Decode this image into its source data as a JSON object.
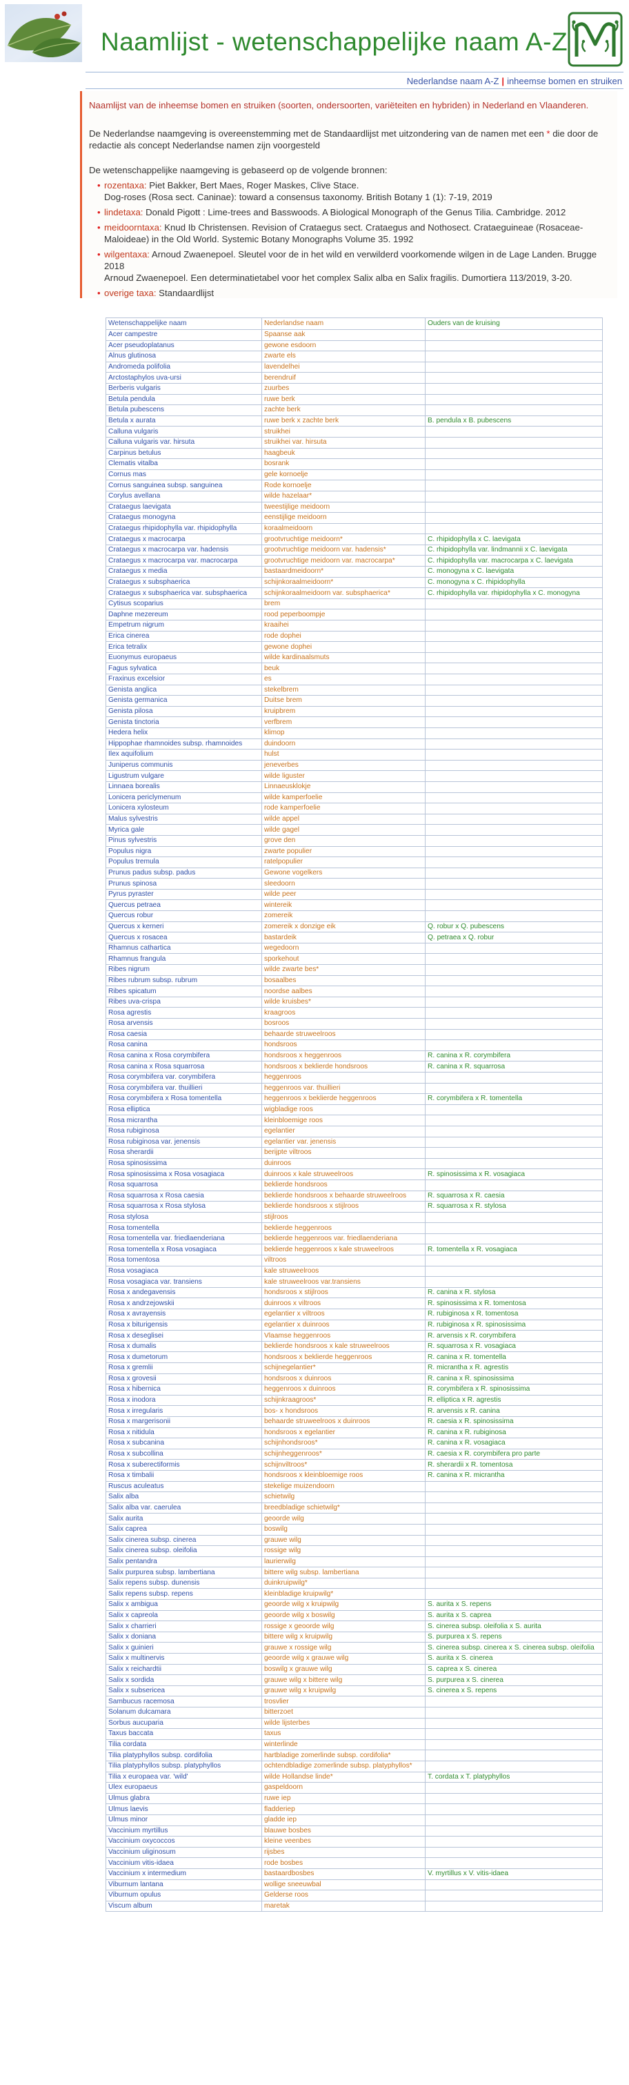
{
  "header": {
    "title": "Naamlijst - wetenschappelijke  naam A-Z",
    "nav_current": "Nederlandse naam A-Z",
    "nav_separator": "|",
    "nav_link": "inheemse bomen en struiken"
  },
  "intro": {
    "heading": "Naamlijst van de inheemse bomen en struiken (soorten, ondersoorten, variëteiten en hybriden) in Nederland en Vlaanderen.",
    "p2_a": "De Nederlandse naamgeving is overeenstemming met de Standaardlijst met uitzondering van de namen met een ",
    "p2_star": "*",
    "p2_b": " die door de redactie als concept Nederlandse namen zijn voorgesteld",
    "p3": "De wetenschappelijke naamgeving is gebaseerd op de volgende bronnen:",
    "sources": [
      {
        "key": "rozentaxa:",
        "line1": " Piet Bakker, Bert Maes, Roger Maskes, Clive Stace.",
        "line2": "Dog-roses (Rosa sect. Caninae): toward a consensus taxonomy. British Botany 1 (1): 7-19, 2019"
      },
      {
        "key": "lindetaxa:",
        "line1": " Donald Pigott : Lime-trees and Basswoods. A Biological Monograph of the Genus Tilia. Cambridge. 2012",
        "line2": ""
      },
      {
        "key": "meidoorntaxa:",
        "line1": " Knud Ib Christensen. Revision of Crataegus sect. Crataegus and Nothosect. Crataeguineae (Rosaceae-Maloideae) in the Old World. Systemic Botany Monographs Volume 35. 1992",
        "line2": ""
      },
      {
        "key": "wilgentaxa:",
        "line1": " Arnoud Zwaenepoel. Sleutel voor de in het wild en verwilderd voorkomende wilgen in de Lage Landen. Brugge 2018",
        "line2": "Arnoud Zwaenepoel. Een determinatietabel voor het complex Salix alba en Salix fragilis. Dumortiera 113/2019, 3-20."
      },
      {
        "key": "overige taxa:",
        "line1": " Standaardlijst",
        "line2": ""
      }
    ]
  },
  "table": {
    "headers": [
      "Wetenschappelijke naam",
      "Nederlandse naam",
      "Ouders van de kruising"
    ],
    "rows": [
      [
        "Acer campestre",
        "Spaanse aak",
        ""
      ],
      [
        "Acer pseudoplatanus",
        "gewone esdoorn",
        ""
      ],
      [
        "Alnus glutinosa",
        "zwarte els",
        ""
      ],
      [
        "Andromeda polifolia",
        "lavendelhei",
        ""
      ],
      [
        "Arctostaphylos uva-ursi",
        "berendruif",
        ""
      ],
      [
        "Berberis vulgaris",
        "zuurbes",
        ""
      ],
      [
        "Betula pendula",
        "ruwe berk",
        ""
      ],
      [
        "Betula pubescens",
        "zachte berk",
        ""
      ],
      [
        "Betula x aurata",
        "ruwe berk x zachte berk",
        "B. pendula x B. pubescens"
      ],
      [
        "Calluna vulgaris",
        "struikhei",
        ""
      ],
      [
        "Calluna vulgaris var. hirsuta",
        "struikhei var. hirsuta",
        ""
      ],
      [
        "Carpinus betulus",
        "haagbeuk",
        ""
      ],
      [
        "Clematis vitalba",
        "bosrank",
        ""
      ],
      [
        "Cornus mas",
        "gele kornoelje",
        ""
      ],
      [
        "Cornus sanguinea subsp. sanguinea",
        "Rode kornoelje",
        ""
      ],
      [
        "Corylus avellana",
        "wilde hazelaar*",
        ""
      ],
      [
        "Crataegus laevigata",
        "tweestijlige meidoorn",
        ""
      ],
      [
        "Crataegus monogyna",
        "eenstijlige meidoorn",
        ""
      ],
      [
        "Crataegus rhipidophylla var. rhipidophylla",
        "koraalmeidoorn",
        ""
      ],
      [
        "Crataegus x macrocarpa",
        "grootvruchtige meidoorn*",
        "C. rhipidophylla x C. laevigata"
      ],
      [
        "Crataegus x macrocarpa var. hadensis",
        "grootvruchtige meidoorn var. hadensis*",
        "C. rhipidophylla var. lindmannii x C. laevigata"
      ],
      [
        "Crataegus x macrocarpa var. macrocarpa",
        "grootvruchtige meidoorn var. macrocarpa*",
        "C. rhipidophylla var. macrocarpa x C. laevigata"
      ],
      [
        "Crataegus x media",
        "bastaardmeidoorn*",
        "C. monogyna x C. laevigata"
      ],
      [
        "Crataegus x subsphaerica",
        "schijnkoraalmeidoorn*",
        "C. monogyna x C. rhipidophylla"
      ],
      [
        "Crataegus x subsphaerica var. subsphaerica",
        "schijnkoraalmeidoorn var. subsphaerica*",
        "C. rhipidophylla var. rhipidophylla x C. monogyna"
      ],
      [
        "Cytisus scoparius",
        "brem",
        ""
      ],
      [
        "Daphne mezereum",
        "rood peperboompje",
        ""
      ],
      [
        "Empetrum nigrum",
        "kraaihei",
        ""
      ],
      [
        "Erica cinerea",
        "rode dophei",
        ""
      ],
      [
        "Erica tetralix",
        "gewone dophei",
        ""
      ],
      [
        "Euonymus europaeus",
        "wilde kardinaalsmuts",
        ""
      ],
      [
        "Fagus sylvatica",
        "beuk",
        ""
      ],
      [
        "Fraxinus excelsior",
        "es",
        ""
      ],
      [
        "Genista anglica",
        "stekelbrem",
        ""
      ],
      [
        "Genista germanica",
        "Duitse brem",
        ""
      ],
      [
        "Genista pilosa",
        "kruipbrem",
        ""
      ],
      [
        "Genista tinctoria",
        "verfbrem",
        ""
      ],
      [
        "Hedera helix",
        "klimop",
        ""
      ],
      [
        "Hippophae rhamnoides subsp. rhamnoides",
        "duindoorn",
        ""
      ],
      [
        "Ilex aquifolium",
        "hulst",
        ""
      ],
      [
        "Juniperus communis",
        "jeneverbes",
        ""
      ],
      [
        "Ligustrum vulgare",
        "wilde liguster",
        ""
      ],
      [
        "Linnaea borealis",
        "Linnaeusklokje",
        ""
      ],
      [
        "Lonicera periclymenum",
        "wilde kamperfoelie",
        ""
      ],
      [
        "Lonicera xylosteum",
        "rode kamperfoelie",
        ""
      ],
      [
        "Malus sylvestris",
        "wilde appel",
        ""
      ],
      [
        "Myrica gale",
        "wilde gagel",
        ""
      ],
      [
        "Pinus sylvestris",
        "grove den",
        ""
      ],
      [
        "Populus nigra",
        "zwarte populier",
        ""
      ],
      [
        "Populus tremula",
        "ratelpopulier",
        ""
      ],
      [
        "Prunus padus subsp. padus",
        "Gewone vogelkers",
        ""
      ],
      [
        "Prunus spinosa",
        "sleedoorn",
        ""
      ],
      [
        "Pyrus pyraster",
        "wilde peer",
        ""
      ],
      [
        "Quercus petraea",
        "wintereik",
        ""
      ],
      [
        "Quercus robur",
        "zomereik",
        ""
      ],
      [
        "Quercus x kerneri",
        "zomereik x donzige eik",
        "Q. robur x Q. pubescens"
      ],
      [
        "Quercus x rosacea",
        "bastardeik",
        "Q. petraea x Q. robur"
      ],
      [
        "Rhamnus cathartica",
        "wegedoorn",
        ""
      ],
      [
        "Rhamnus frangula",
        "sporkehout",
        ""
      ],
      [
        "Ribes nigrum",
        "wilde zwarte bes*",
        ""
      ],
      [
        "Ribes rubrum subsp. rubrum",
        "bosaalbes",
        ""
      ],
      [
        "Ribes spicatum",
        "noordse aalbes",
        ""
      ],
      [
        "Ribes uva-crispa",
        "wilde kruisbes*",
        ""
      ],
      [
        "Rosa agrestis",
        "kraagroos",
        ""
      ],
      [
        "Rosa arvensis",
        "bosroos",
        ""
      ],
      [
        "Rosa caesia",
        "behaarde struweelroos",
        ""
      ],
      [
        "Rosa canina",
        "hondsroos",
        ""
      ],
      [
        "Rosa canina x Rosa corymbifera",
        "hondsroos x heggenroos",
        "R. canina x R. corymbifera"
      ],
      [
        "Rosa canina x Rosa squarrosa",
        "hondsroos x beklierde hondsroos",
        "R. canina x R. squarrosa"
      ],
      [
        "Rosa corymbifera var. corymbifera",
        "heggenroos",
        ""
      ],
      [
        "Rosa corymbifera var. thuillieri",
        "heggenroos var. thuillieri",
        ""
      ],
      [
        "Rosa corymbifera x Rosa tomentella",
        "heggenroos x beklierde heggenroos",
        "R. corymbifera x R. tomentella"
      ],
      [
        "Rosa elliptica",
        "wigbladige roos",
        ""
      ],
      [
        "Rosa micrantha",
        "kleinbloemige roos",
        ""
      ],
      [
        "Rosa rubiginosa",
        "egelantier",
        ""
      ],
      [
        "Rosa rubiginosa var. jenensis",
        "egelantier var. jenensis",
        ""
      ],
      [
        "Rosa sherardii",
        "berijpte viltroos",
        ""
      ],
      [
        "Rosa spinosissima",
        "duinroos",
        ""
      ],
      [
        "Rosa spinosissima x Rosa vosagiaca",
        "duinroos x kale struweelroos",
        "R. spinosissima x R. vosagiaca"
      ],
      [
        "Rosa squarrosa",
        "beklierde hondsroos",
        ""
      ],
      [
        "Rosa squarrosa x Rosa caesia",
        "beklierde hondsroos x behaarde struweelroos",
        "R. squarrosa x R. caesia"
      ],
      [
        "Rosa squarrosa x Rosa stylosa",
        "beklierde hondsroos x stijlroos",
        "R. squarrosa x R. stylosa"
      ],
      [
        "Rosa stylosa",
        "stijlroos",
        ""
      ],
      [
        "Rosa tomentella",
        "beklierde heggenroos",
        ""
      ],
      [
        "Rosa tomentella var. friedlaenderiana",
        "beklierde heggenroos var. friedlaenderiana",
        ""
      ],
      [
        "Rosa tomentella x Rosa vosagiaca",
        "beklierde heggenroos x kale struweelroos",
        "R. tomentella x R. vosagiaca"
      ],
      [
        "Rosa tomentosa",
        "viltroos",
        ""
      ],
      [
        "Rosa vosagiaca",
        "kale struweelroos",
        ""
      ],
      [
        "Rosa vosagiaca var. transiens",
        "kale struweelroos var.transiens",
        ""
      ],
      [
        "Rosa x andegavensis",
        "hondsroos x stijlroos",
        "R. canina x R. stylosa"
      ],
      [
        "Rosa x andrzejowskii",
        "duinroos x viltroos",
        "R. spinosissima x R. tomentosa"
      ],
      [
        "Rosa x avrayensis",
        "egelantier x viltroos",
        "R. rubiginosa x R. tomentosa"
      ],
      [
        "Rosa x biturigensis",
        "egelantier x duinroos",
        "R. rubiginosa x R. spinosissima"
      ],
      [
        "Rosa x deseglisei",
        "Vlaamse heggenroos",
        "R. arvensis x R. corymbifera"
      ],
      [
        "Rosa x dumalis",
        "beklierde hondsroos x kale struweelroos",
        "R. squarrosa x R. vosagiaca"
      ],
      [
        "Rosa x dumetorum",
        "hondsroos x beklierde heggenroos",
        "R. canina x R. tomentella"
      ],
      [
        "Rosa x gremlii",
        "schijnegelantier*",
        "R. micrantha x R. agrestis"
      ],
      [
        "Rosa x grovesii",
        "hondsroos x duinroos",
        "R. canina x R. spinosissima"
      ],
      [
        "Rosa x hibernica",
        "heggenroos x duinroos",
        "R. corymbifera x R. spinosissima"
      ],
      [
        "Rosa x inodora",
        "schijnkraagroos*",
        "R. elliptica x R. agrestis"
      ],
      [
        "Rosa x irregularis",
        "bos- x hondsroos",
        "R. arvensis x R. canina"
      ],
      [
        "Rosa x margerisonii",
        "behaarde struweelroos x duinroos",
        "R. caesia x R. spinosissima"
      ],
      [
        "Rosa x nitidula",
        "hondsroos x egelantier",
        "R. canina x R. rubiginosa"
      ],
      [
        "Rosa x subcanina",
        "schijnhondsroos*",
        "R. canina x R. vosagiaca"
      ],
      [
        "Rosa x subcollina",
        "schijnheggenroos*",
        "R. caesia x R. corymbifera pro parte"
      ],
      [
        "Rosa x suberectiformis",
        "schijnviltroos*",
        "R. sherardii x R. tomentosa"
      ],
      [
        "Rosa x timbalii",
        "hondsroos x kleinbloemige roos",
        "R. canina x R. micrantha"
      ],
      [
        "Ruscus aculeatus",
        "stekelige muizendoorn",
        ""
      ],
      [
        "Salix alba",
        "schietwilg",
        ""
      ],
      [
        "Salix alba var. caerulea",
        "breedbladige schietwilg*",
        ""
      ],
      [
        "Salix aurita",
        "geoorde wilg",
        ""
      ],
      [
        "Salix caprea",
        "boswilg",
        ""
      ],
      [
        "Salix cinerea subsp. cinerea",
        "grauwe wilg",
        ""
      ],
      [
        "Salix cinerea subsp. oleifolia",
        "rossige wilg",
        ""
      ],
      [
        "Salix pentandra",
        "laurierwilg",
        ""
      ],
      [
        "Salix purpurea subsp. lambertiana",
        "bittere wilg subsp. lambertiana",
        ""
      ],
      [
        "Salix repens subsp. dunensis",
        "duinkruipwilg*",
        ""
      ],
      [
        "Salix repens subsp. repens",
        "kleinbladige kruipwilg*",
        ""
      ],
      [
        "Salix x ambigua",
        "geoorde wilg x kruipwilg",
        "S. aurita x S. repens"
      ],
      [
        "Salix x capreola",
        "geoorde wilg x boswilg",
        "S. aurita x S. caprea"
      ],
      [
        "Salix x charrieri",
        "rossige x geoorde wilg",
        "S. cinerea subsp. oleifolia x S. aurita"
      ],
      [
        "Salix x doniana",
        "bittere wilg x kruipwilg",
        "S. purpurea x S. repens"
      ],
      [
        "Salix x guinieri",
        "grauwe x rossige wilg",
        "S. cinerea subsp. cinerea x S. cinerea subsp. oleifolia"
      ],
      [
        "Salix x multinervis",
        "geoorde wilg x grauwe wilg",
        "S. aurita x S. cinerea"
      ],
      [
        "Salix x reichardtii",
        "boswilg x grauwe wilg",
        "S. caprea x S. cinerea"
      ],
      [
        "Salix x sordida",
        "grauwe wilg x bittere wilg",
        "S. purpurea x S. cinerea"
      ],
      [
        "Salix x subsericea",
        "grauwe wilg x kruipwilg",
        "S. cinerea x S. repens"
      ],
      [
        "Sambucus racemosa",
        "trosvlier",
        ""
      ],
      [
        "Solanum dulcamara",
        "bitterzoet",
        ""
      ],
      [
        "Sorbus aucuparia",
        "wilde lijsterbes",
        ""
      ],
      [
        "Taxus baccata",
        "taxus",
        ""
      ],
      [
        "Tilia cordata",
        "winterlinde",
        ""
      ],
      [
        "Tilia platyphyllos subsp. cordifolia",
        "hartbladige zomerlinde subsp. cordifolia*",
        ""
      ],
      [
        "Tilia platyphyllos subsp. platyphyllos",
        "ochtendbladige zomerlinde subsp. platyphyllos*",
        ""
      ],
      [
        "Tilia x europaea var. 'wild'",
        "wilde Hollandse linde*",
        "T. cordata x T. platyphyllos"
      ],
      [
        "Ulex europaeus",
        "gaspeldoorn",
        ""
      ],
      [
        "Ulmus glabra",
        "ruwe iep",
        ""
      ],
      [
        "Ulmus laevis",
        "fladderiep",
        ""
      ],
      [
        "Ulmus minor",
        "gladde iep",
        ""
      ],
      [
        "Vaccinium myrtillus",
        "blauwe bosbes",
        ""
      ],
      [
        "Vaccinium oxycoccos",
        "kleine veenbes",
        ""
      ],
      [
        "Vaccinium uliginosum",
        "rijsbes",
        ""
      ],
      [
        "Vaccinium vitis-idaea",
        "rode bosbes",
        ""
      ],
      [
        "Vaccinium x intermedium",
        "bastaardbosbes",
        "V. myrtillus x V. vitis-idaea"
      ],
      [
        "Viburnum lantana",
        "wollige sneeuwbal",
        ""
      ],
      [
        "Viburnum opulus",
        "Gelderse roos",
        ""
      ],
      [
        "Viscum album",
        "maretak",
        ""
      ]
    ]
  }
}
